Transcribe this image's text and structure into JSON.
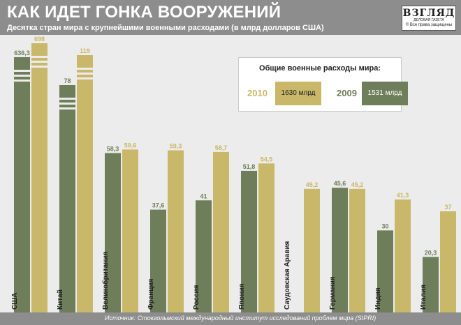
{
  "header": {
    "title": "КАК ИДЕТ ГОНКА ВООРУЖЕНИЙ",
    "subtitle": "Десятка стран мира с крупнейшими военными расходами (в млрд долларов США)"
  },
  "logo": {
    "name": "ВЗГЛЯД",
    "tagline": "ДЕЛОВАЯ ГАЗЕТА",
    "copyright": "© Все права защищены"
  },
  "legend_box": {
    "title": "Общие военные расходы мира:",
    "items": [
      {
        "year": "2010",
        "amount": "1630 млрд"
      },
      {
        "year": "2009",
        "amount": "1531 млрд"
      }
    ]
  },
  "footer": {
    "source": "Источник: Стокгольмский международный институт исследований проблем мира (SIPRI)"
  },
  "colors": {
    "y2009": "#6e7d5a",
    "y2010": "#c9b86a",
    "header": "#8d8d8d",
    "background": "#ececec"
  },
  "chart_data": {
    "type": "bar",
    "categories": [
      "США",
      "Китай",
      "Великобритания",
      "Франция",
      "Россия",
      "Япония",
      "Саудовская Аравия",
      "Германия",
      "Индия",
      "Италия"
    ],
    "series": [
      {
        "year": "2009",
        "values": [
          636.3,
          78,
          58.3,
          37.6,
          41,
          51.8,
          null,
          45.6,
          30,
          20.3
        ],
        "labels": [
          "636,3",
          "78",
          "58,3",
          "37,6",
          "41",
          "51,8",
          "",
          "45,6",
          "30",
          "20,3"
        ]
      },
      {
        "year": "2010",
        "values": [
          698,
          119,
          59.6,
          59.3,
          58.7,
          54.5,
          45.2,
          45.2,
          41.3,
          37
        ],
        "labels": [
          "698",
          "119",
          "59,6",
          "59,3",
          "58,7",
          "54,5",
          "45,2",
          "45,2",
          "41,3",
          "37"
        ]
      }
    ],
    "bar_styles": {
      "scale_break": true,
      "broken_categories": [
        "США",
        "Китай"
      ]
    },
    "grid": false,
    "legend": "top-right"
  }
}
